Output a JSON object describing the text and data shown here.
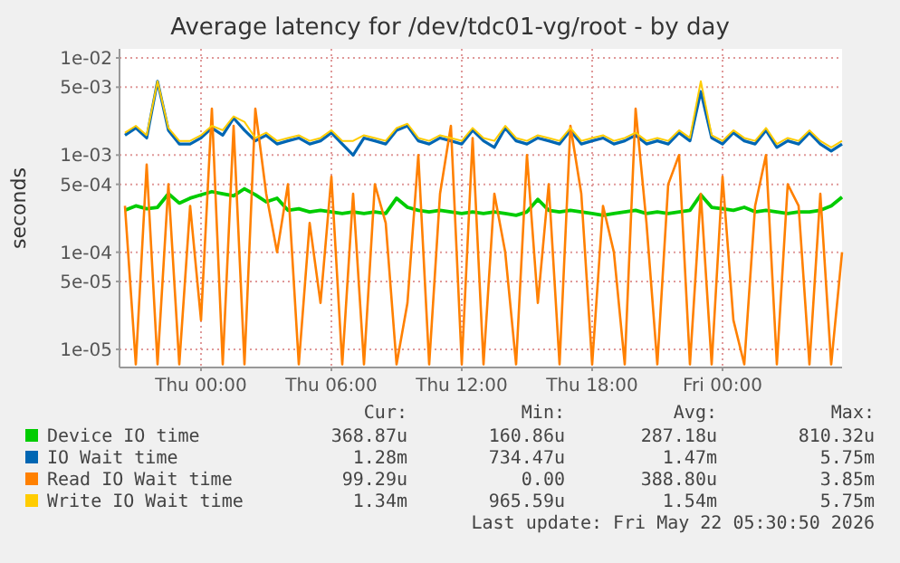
{
  "chart_data": {
    "type": "line",
    "title": "Average latency for /dev/tdc01-vg/root - by day",
    "ylabel": "seconds",
    "log": "y",
    "grid": true,
    "legend": "bottom",
    "x": [
      "2026-05-20T20:30",
      "2026-05-20T21:00",
      "2026-05-20T21:30",
      "2026-05-20T22:00",
      "2026-05-20T22:30",
      "2026-05-20T23:00",
      "2026-05-20T23:30",
      "2026-05-21T00:00",
      "2026-05-21T00:30",
      "2026-05-21T01:00",
      "2026-05-21T01:30",
      "2026-05-21T02:00",
      "2026-05-21T02:30",
      "2026-05-21T03:00",
      "2026-05-21T03:30",
      "2026-05-21T04:00",
      "2026-05-21T04:30",
      "2026-05-21T05:00",
      "2026-05-21T05:30",
      "2026-05-21T06:00",
      "2026-05-21T06:30",
      "2026-05-21T07:00",
      "2026-05-21T07:30",
      "2026-05-21T08:00",
      "2026-05-21T08:30",
      "2026-05-21T09:00",
      "2026-05-21T09:30",
      "2026-05-21T10:00",
      "2026-05-21T10:30",
      "2026-05-21T11:00",
      "2026-05-21T11:30",
      "2026-05-21T12:00",
      "2026-05-21T12:30",
      "2026-05-21T13:00",
      "2026-05-21T13:30",
      "2026-05-21T14:00",
      "2026-05-21T14:30",
      "2026-05-21T15:00",
      "2026-05-21T15:30",
      "2026-05-21T16:00",
      "2026-05-21T16:30",
      "2026-05-21T17:00",
      "2026-05-21T17:30",
      "2026-05-21T18:00",
      "2026-05-21T18:30",
      "2026-05-21T19:00",
      "2026-05-21T19:30",
      "2026-05-21T20:00",
      "2026-05-21T20:30",
      "2026-05-21T21:00",
      "2026-05-21T21:30",
      "2026-05-21T22:00",
      "2026-05-21T22:30",
      "2026-05-21T23:00",
      "2026-05-21T23:30",
      "2026-05-22T00:00",
      "2026-05-22T00:30",
      "2026-05-22T01:00",
      "2026-05-22T01:30",
      "2026-05-22T02:00",
      "2026-05-22T02:30",
      "2026-05-22T03:00",
      "2026-05-22T03:30",
      "2026-05-22T04:00",
      "2026-05-22T04:30",
      "2026-05-22T05:00",
      "2026-05-22T05:30"
    ],
    "xlim": [
      "2026-05-20T20:15",
      "2026-05-22T05:30"
    ],
    "xticks": [
      {
        "value": "2026-05-21T00:00",
        "label": "Thu 00:00"
      },
      {
        "value": "2026-05-21T06:00",
        "label": "Thu 06:00"
      },
      {
        "value": "2026-05-21T12:00",
        "label": "Thu 12:00"
      },
      {
        "value": "2026-05-21T18:00",
        "label": "Thu 18:00"
      },
      {
        "value": "2026-05-22T00:00",
        "label": "Fri 00:00"
      }
    ],
    "ylim": [
      6.5e-06,
      0.0124
    ],
    "yticks": [
      {
        "value": 0.01,
        "label": "1e-02"
      },
      {
        "value": 0.005,
        "label": "5e-03"
      },
      {
        "value": 0.001,
        "label": "1e-03"
      },
      {
        "value": 0.0005,
        "label": "5e-04"
      },
      {
        "value": 0.0001,
        "label": "1e-04"
      },
      {
        "value": 5e-05,
        "label": "5e-05"
      },
      {
        "value": 1e-05,
        "label": "1e-05"
      }
    ],
    "series": [
      {
        "name": "Device IO time",
        "color": "#00cc00",
        "values": [
          0.00027,
          0.0003,
          0.00028,
          0.00029,
          0.0004,
          0.00032,
          0.00036,
          0.00039,
          0.00042,
          0.0004,
          0.00038,
          0.00045,
          0.00039,
          0.00033,
          0.00036,
          0.00027,
          0.00028,
          0.00026,
          0.00027,
          0.00026,
          0.00025,
          0.00026,
          0.00025,
          0.00026,
          0.00025,
          0.00036,
          0.00029,
          0.00027,
          0.00026,
          0.00027,
          0.00026,
          0.00025,
          0.00026,
          0.00025,
          0.00026,
          0.00025,
          0.00024,
          0.00026,
          0.00035,
          0.00027,
          0.00026,
          0.00027,
          0.00026,
          0.00025,
          0.00024,
          0.00025,
          0.00026,
          0.00027,
          0.00025,
          0.00026,
          0.00025,
          0.00026,
          0.00027,
          0.00039,
          0.00029,
          0.00028,
          0.00027,
          0.00029,
          0.00026,
          0.00027,
          0.00026,
          0.00025,
          0.00026,
          0.00026,
          0.00027,
          0.0003,
          0.00037
        ]
      },
      {
        "name": "IO Wait time",
        "color": "#0066b3",
        "values": [
          0.0016,
          0.0019,
          0.0015,
          0.00575,
          0.0018,
          0.0013,
          0.0013,
          0.0015,
          0.0019,
          0.0016,
          0.0024,
          0.0018,
          0.0014,
          0.0016,
          0.0013,
          0.0014,
          0.0015,
          0.0013,
          0.0014,
          0.0017,
          0.0013,
          0.001,
          0.0015,
          0.0014,
          0.0013,
          0.0018,
          0.002,
          0.0014,
          0.0013,
          0.0015,
          0.0014,
          0.0013,
          0.0018,
          0.0014,
          0.0012,
          0.0019,
          0.0014,
          0.0013,
          0.0015,
          0.0014,
          0.0013,
          0.0018,
          0.0013,
          0.0014,
          0.0015,
          0.0013,
          0.0014,
          0.0016,
          0.0013,
          0.0014,
          0.0013,
          0.0017,
          0.0014,
          0.0045,
          0.0015,
          0.0013,
          0.0017,
          0.0014,
          0.0013,
          0.0018,
          0.0012,
          0.0014,
          0.0013,
          0.0017,
          0.0013,
          0.0011,
          0.0013
        ]
      },
      {
        "name": "Read IO Wait time",
        "color": "#ff8000",
        "values": [
          0.0003,
          7e-06,
          0.0008,
          7e-06,
          0.0005,
          7e-06,
          0.0003,
          2e-05,
          0.003,
          7e-06,
          0.002,
          7e-06,
          0.003,
          0.0004,
          0.0001,
          0.0005,
          7e-06,
          0.0002,
          3e-05,
          0.0006,
          7e-06,
          0.0004,
          7e-06,
          0.0005,
          0.0002,
          7e-06,
          3e-05,
          0.001,
          7e-06,
          0.0004,
          0.002,
          7e-06,
          0.0015,
          7e-06,
          0.0004,
          0.0001,
          7e-06,
          0.001,
          3e-05,
          0.0005,
          7e-06,
          0.002,
          0.0004,
          7e-06,
          0.0003,
          0.0001,
          7e-06,
          0.003,
          0.0002,
          7e-06,
          0.0005,
          0.001,
          7e-06,
          0.0004,
          7e-06,
          0.0006,
          2e-05,
          7e-06,
          0.0003,
          0.001,
          7e-06,
          0.0005,
          0.0003,
          7e-06,
          0.0004,
          7e-06,
          0.0001
        ]
      },
      {
        "name": "Write IO Wait time",
        "color": "#ffcc00",
        "values": [
          0.0017,
          0.002,
          0.0016,
          0.00575,
          0.0019,
          0.0014,
          0.0014,
          0.0016,
          0.002,
          0.0018,
          0.0025,
          0.0022,
          0.0015,
          0.0017,
          0.0014,
          0.0015,
          0.0016,
          0.0014,
          0.0015,
          0.0018,
          0.0014,
          0.0014,
          0.0016,
          0.0015,
          0.0014,
          0.0019,
          0.0021,
          0.0015,
          0.0014,
          0.0016,
          0.0015,
          0.0014,
          0.0019,
          0.0015,
          0.0014,
          0.002,
          0.0015,
          0.0014,
          0.0016,
          0.0015,
          0.0014,
          0.0019,
          0.0014,
          0.0015,
          0.0016,
          0.0014,
          0.0015,
          0.0017,
          0.0014,
          0.0015,
          0.0014,
          0.0018,
          0.0015,
          0.00575,
          0.0016,
          0.0014,
          0.0018,
          0.0015,
          0.0014,
          0.0019,
          0.0013,
          0.0015,
          0.0014,
          0.0018,
          0.0014,
          0.0012,
          0.0014
        ]
      }
    ],
    "annotations": [
      "Cur:",
      "Min:",
      "Avg:",
      "Max:",
      "368.87u",
      "160.86u",
      "287.18u",
      "810.32u",
      "1.28m",
      "734.47u",
      "1.47m",
      "5.75m",
      "99.29u",
      "0.00",
      "388.80u",
      "3.85m",
      "1.34m",
      "965.59u",
      "1.54m",
      "5.75m",
      "Last update: Fri May 22 05:30:50 2026"
    ]
  }
}
